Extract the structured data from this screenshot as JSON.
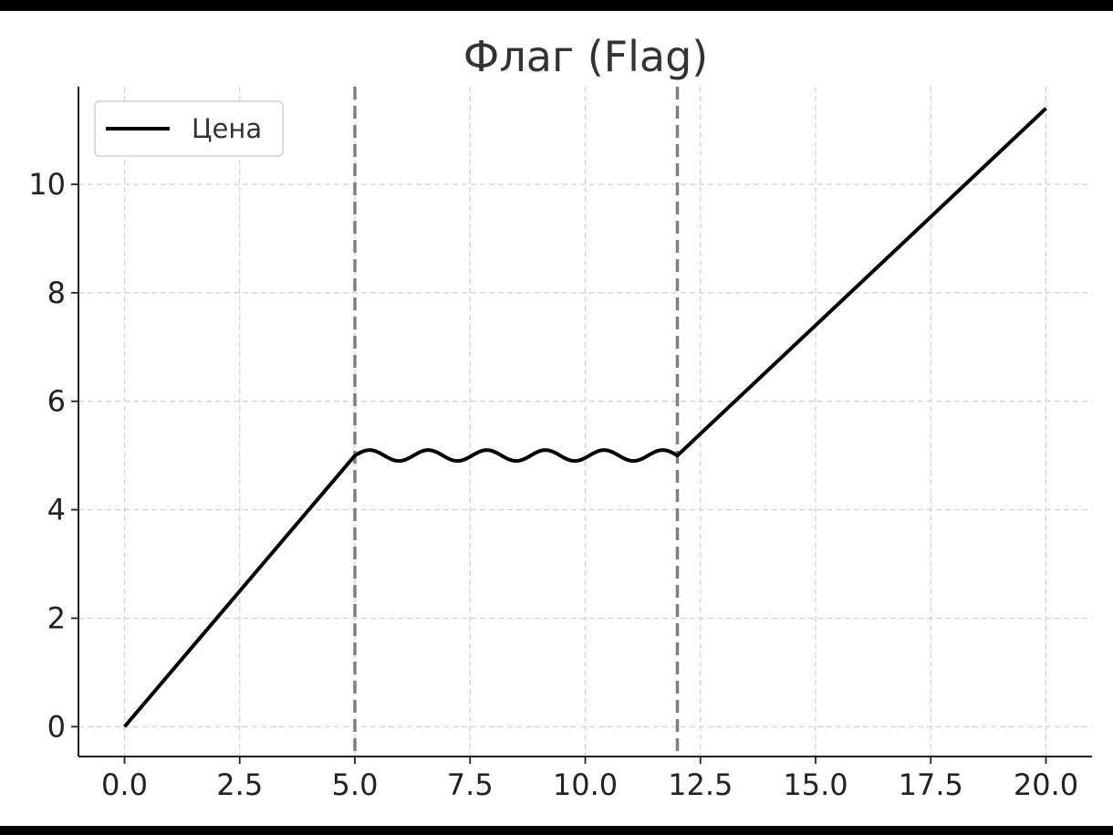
{
  "chart_data": {
    "type": "line",
    "title": "Флаг (Flag)",
    "xlabel": "",
    "ylabel": "",
    "xlim": [
      -1,
      21
    ],
    "ylim": [
      -0.55,
      11.8
    ],
    "xticks": [
      "0.0",
      "2.5",
      "5.0",
      "7.5",
      "10.0",
      "12.5",
      "15.0",
      "17.5",
      "20.0"
    ],
    "yticks": [
      "0",
      "2",
      "4",
      "6",
      "8",
      "10"
    ],
    "grid": true,
    "legend": {
      "position": "top-left",
      "entries": [
        "Цена"
      ]
    },
    "series": [
      {
        "name": "Цена",
        "color": "#000000",
        "segments": [
          {
            "shape": "linear",
            "x": [
              0,
              5
            ],
            "y": [
              0,
              5
            ]
          },
          {
            "shape": "oscillation",
            "x_start": 5,
            "x_end": 12,
            "center": 5,
            "amplitude": 0.1,
            "cycles": 5.5
          },
          {
            "shape": "linear",
            "x": [
              12,
              20
            ],
            "y": [
              5,
              11.4
            ]
          }
        ]
      }
    ],
    "vlines": [
      {
        "x": 5,
        "style": "dashed",
        "color": "#808080"
      },
      {
        "x": 12,
        "style": "dashed",
        "color": "#808080"
      }
    ]
  }
}
